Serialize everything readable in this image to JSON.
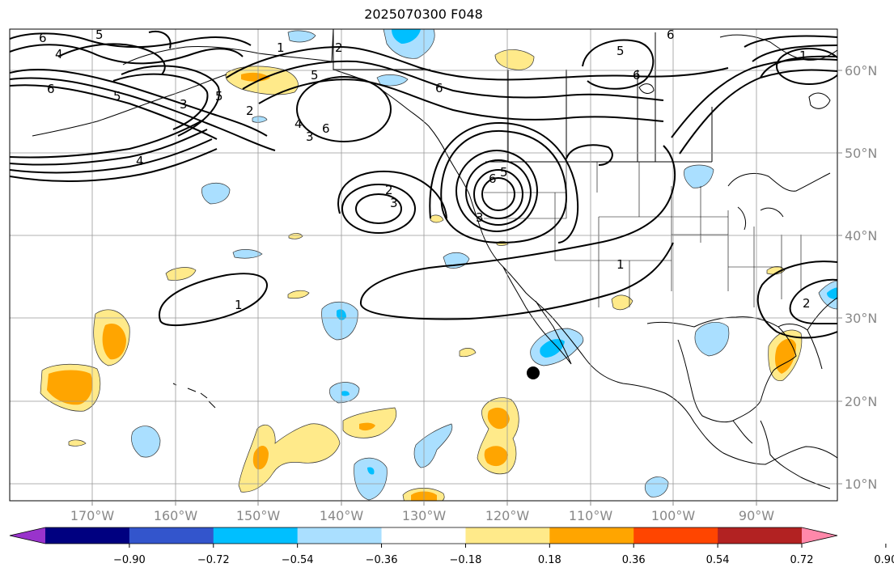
{
  "title": "2025070300 F048",
  "lon_ticks": [
    "170°W",
    "160°W",
    "150°W",
    "140°W",
    "130°W",
    "120°W",
    "110°W",
    "100°W",
    "90°W"
  ],
  "lat_ticks": [
    "60°N",
    "50°N",
    "40°N",
    "30°N",
    "20°N",
    "10°N"
  ],
  "colorbar": {
    "colors": [
      "#9933cc",
      "#000080",
      "#3355cc",
      "#00bfff",
      "#aadfff",
      "#ffffff",
      "#ffea8a",
      "#ffa500",
      "#ff4500",
      "#b22222",
      "#ff88aa"
    ],
    "labels": [
      "−0.90",
      "−0.72",
      "−0.54",
      "−0.36",
      "−0.18",
      "0.18",
      "0.36",
      "0.54",
      "0.72",
      "0.90"
    ]
  },
  "contour_labels": [
    "6",
    "5",
    "4",
    "5",
    "6",
    "1",
    "2",
    "5",
    "6",
    "5",
    "6",
    "1",
    "6",
    "5",
    "3",
    "2",
    "4",
    "6",
    "4",
    "3",
    "2",
    "3",
    "6",
    "5",
    "3",
    "1",
    "1",
    "2"
  ],
  "colors": {
    "contour": "#000000",
    "grid": "#999999",
    "tick_text": "#888888",
    "marker": "#000000"
  }
}
